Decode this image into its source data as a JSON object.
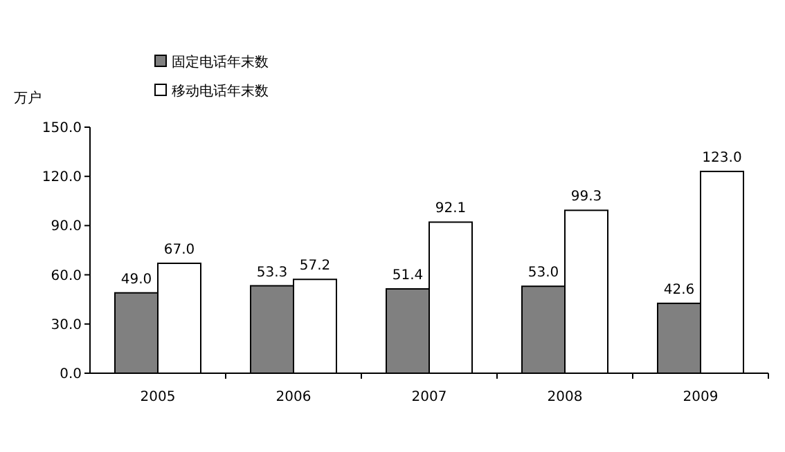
{
  "chart_data": {
    "type": "bar",
    "ylabel": "万户",
    "categories": [
      "2005",
      "2006",
      "2007",
      "2008",
      "2009"
    ],
    "series": [
      {
        "name": "固定电话年末数",
        "color": "#808080",
        "values": [
          49.0,
          53.3,
          51.4,
          53.0,
          42.6
        ],
        "value_labels": [
          "49.0",
          "53.3",
          "51.4",
          "53.0",
          "42.6"
        ]
      },
      {
        "name": "移动电话年末数",
        "color": "#ffffff",
        "values": [
          67.0,
          57.2,
          92.1,
          99.3,
          123.0
        ],
        "value_labels": [
          "67.0",
          "57.2",
          "92.1",
          "99.3",
          "123.0"
        ]
      }
    ],
    "ylim": [
      0,
      150
    ],
    "yticks": [
      {
        "value": 0,
        "label": "0.0"
      },
      {
        "value": 30,
        "label": "30.0"
      },
      {
        "value": 60,
        "label": "60.0"
      },
      {
        "value": 90,
        "label": "90.0"
      },
      {
        "value": 120,
        "label": "120.0"
      },
      {
        "value": 150,
        "label": "150.0"
      }
    ],
    "legend": "top left"
  }
}
